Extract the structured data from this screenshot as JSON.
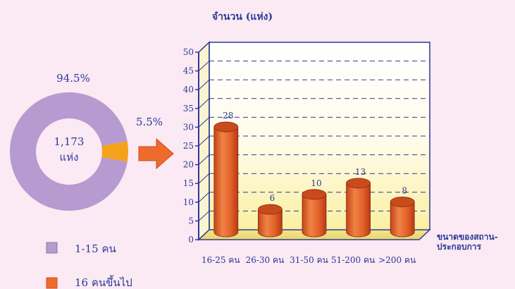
{
  "colors": {
    "background": "#fbe9f3",
    "donut_main": "#b79ad0",
    "donut_small": "#f6a11a",
    "bar": "#e2612a",
    "bar_top": "#c44a1c",
    "axis": "#2b3a9a",
    "text_blue": "#2b3a9a",
    "arrow": "#ee6a2d"
  },
  "chart_data": [
    {
      "type": "pie",
      "style": "donut",
      "center_label": [
        "1,173",
        "แห่ง"
      ],
      "slices": [
        {
          "label": "1-15 คน",
          "value": 94.5,
          "display": "94.5%",
          "color": "#b79ad0"
        },
        {
          "label": "16 คนขึ้นไป",
          "value": 5.5,
          "display": "5.5%",
          "color": "#f6a11a"
        }
      ],
      "legend": {
        "placement": "bottom-left",
        "entries": [
          {
            "label": "1-15 คน",
            "color": "#b79ad0"
          },
          {
            "label": "16 คนขึ้นไป",
            "color": "#ee6a2d"
          }
        ]
      }
    },
    {
      "type": "bar",
      "style": "3d-cylinder",
      "title": "จำนวน (แห่ง)",
      "xlabel": [
        "ขนาดของสถาน-",
        "ประกอบการ"
      ],
      "categories": [
        "16-25 คน",
        "26-30 คน",
        "31-50 คน",
        "51-200 คน",
        ">200 คน"
      ],
      "values": [
        28,
        6,
        10,
        13,
        8
      ],
      "data_labels": [
        "28",
        "6",
        "10",
        "13",
        "8"
      ],
      "ylim": [
        0,
        50
      ],
      "yticks": [
        0,
        5,
        10,
        15,
        20,
        25,
        30,
        35,
        40,
        45,
        50
      ],
      "grid": true
    }
  ]
}
